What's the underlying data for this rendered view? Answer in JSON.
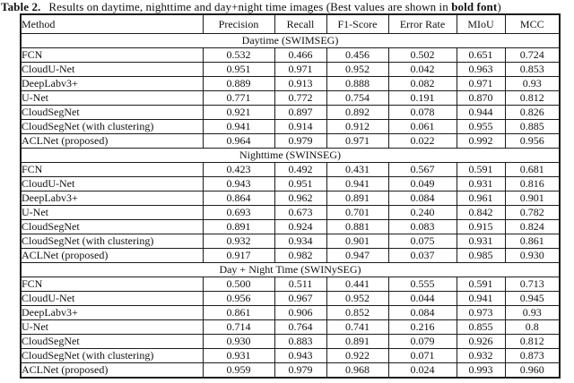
{
  "colors": {
    "background": "#ffffff",
    "text": "#111111",
    "border": "#1c1c1c"
  },
  "caption": {
    "label": "Table 2.",
    "text": "Results on daytime, nighttime and day+night time images (Best values are shown in ",
    "bold_text": "bold font",
    "suffix": ")"
  },
  "table": {
    "columns": [
      "Method",
      "Precision",
      "Recall",
      "F1-Score",
      "Error Rate",
      "MIoU",
      "MCC"
    ],
    "sections": [
      {
        "title": "Daytime (SWIMSEG)",
        "rows": [
          {
            "method": "FCN",
            "values": [
              "0.532",
              "0.466",
              "0.456",
              "0.502",
              "0.651",
              "0.724"
            ],
            "bold": [
              false,
              false,
              false,
              false,
              false,
              false
            ]
          },
          {
            "method": "CloudU-Net",
            "values": [
              "0.951",
              "0.971",
              "0.952",
              "0.042",
              "0.963",
              "0.853"
            ],
            "bold": [
              false,
              false,
              false,
              false,
              false,
              false
            ]
          },
          {
            "method": "DeepLabv3+",
            "values": [
              "0.889",
              "0.913",
              "0.888",
              "0.082",
              "0.971",
              "0.93"
            ],
            "bold": [
              false,
              false,
              false,
              false,
              false,
              false
            ]
          },
          {
            "method": "U-Net",
            "values": [
              "0.771",
              "0.772",
              "0.754",
              "0.191",
              "0.870",
              "0.812"
            ],
            "bold": [
              false,
              false,
              false,
              false,
              false,
              false
            ]
          },
          {
            "method": "CloudSegNet",
            "values": [
              "0.921",
              "0.897",
              "0.892",
              "0.078",
              "0.944",
              "0.826"
            ],
            "bold": [
              false,
              false,
              false,
              false,
              false,
              false
            ]
          },
          {
            "method": "CloudSegNet (with clustering)",
            "values": [
              "0.941",
              "0.914",
              "0.912",
              "0.061",
              "0.955",
              "0.885"
            ],
            "bold": [
              false,
              false,
              false,
              false,
              false,
              false
            ]
          },
          {
            "method": "ACLNet (proposed)",
            "values": [
              "0.964",
              "0.979",
              "0.971",
              "0.022",
              "0.992",
              "0.956"
            ],
            "bold": [
              true,
              true,
              true,
              true,
              true,
              true
            ]
          }
        ]
      },
      {
        "title": "Nighttime (SWINSEG)",
        "rows": [
          {
            "method": "FCN",
            "values": [
              "0.423",
              "0.492",
              "0.431",
              "0.567",
              "0.591",
              "0.681"
            ],
            "bold": [
              false,
              false,
              false,
              false,
              false,
              false
            ]
          },
          {
            "method": "CloudU-Net",
            "values": [
              "0.943",
              "0.951",
              "0.941",
              "0.049",
              "0.931",
              "0.816"
            ],
            "bold": [
              true,
              false,
              false,
              false,
              false,
              false
            ]
          },
          {
            "method": "DeepLabv3+",
            "values": [
              "0.864",
              "0.962",
              "0.891",
              "0.084",
              "0.961",
              "0.901"
            ],
            "bold": [
              false,
              false,
              false,
              false,
              false,
              false
            ]
          },
          {
            "method": "U-Net",
            "values": [
              "0.693",
              "0.673",
              "0.701",
              "0.240",
              "0.842",
              "0.782"
            ],
            "bold": [
              false,
              false,
              false,
              false,
              false,
              false
            ]
          },
          {
            "method": "CloudSegNet",
            "values": [
              "0.891",
              "0.924",
              "0.881",
              "0.083",
              "0.915",
              "0.824"
            ],
            "bold": [
              false,
              false,
              false,
              false,
              false,
              false
            ]
          },
          {
            "method": "CloudSegNet (with clustering)",
            "values": [
              "0.932",
              "0.934",
              "0.901",
              "0.075",
              "0.931",
              "0.861"
            ],
            "bold": [
              false,
              false,
              false,
              false,
              false,
              false
            ]
          },
          {
            "method": "ACLNet (proposed)",
            "values": [
              "0.917",
              "0.982",
              "0.947",
              "0.037",
              "0.985",
              "0.930"
            ],
            "bold": [
              false,
              true,
              true,
              true,
              true,
              true
            ]
          }
        ]
      },
      {
        "title": "Day + Night Time (SWINySEG)",
        "rows": [
          {
            "method": "FCN",
            "values": [
              "0.500",
              "0.511",
              "0.441",
              "0.555",
              "0.591",
              "0.713"
            ],
            "bold": [
              false,
              false,
              false,
              false,
              false,
              false
            ]
          },
          {
            "method": "CloudU-Net",
            "values": [
              "0.956",
              "0.967",
              "0.952",
              "0.044",
              "0.941",
              "0.945"
            ],
            "bold": [
              false,
              false,
              false,
              false,
              false,
              false
            ]
          },
          {
            "method": "DeepLabv3+",
            "values": [
              "0.861",
              "0.906",
              "0.852",
              "0.084",
              "0.973",
              "0.93"
            ],
            "bold": [
              false,
              false,
              false,
              false,
              false,
              false
            ]
          },
          {
            "method": "U-Net",
            "values": [
              "0.714",
              "0.764",
              "0.741",
              "0.216",
              "0.855",
              "0.8"
            ],
            "bold": [
              false,
              false,
              false,
              false,
              false,
              false
            ]
          },
          {
            "method": "CloudSegNet",
            "values": [
              "0.930",
              "0.883",
              "0.891",
              "0.079",
              "0.926",
              "0.812"
            ],
            "bold": [
              false,
              false,
              false,
              false,
              false,
              false
            ]
          },
          {
            "method": "CloudSegNet (with clustering)",
            "values": [
              "0.931",
              "0.943",
              "0.922",
              "0.071",
              "0.932",
              "0.873"
            ],
            "bold": [
              false,
              false,
              false,
              false,
              false,
              false
            ]
          },
          {
            "method": "ACLNet (proposed)",
            "values": [
              "0.959",
              "0.979",
              "0.968",
              "0.024",
              "0.993",
              "0.960"
            ],
            "bold": [
              true,
              true,
              true,
              true,
              true,
              true
            ]
          }
        ]
      }
    ]
  }
}
